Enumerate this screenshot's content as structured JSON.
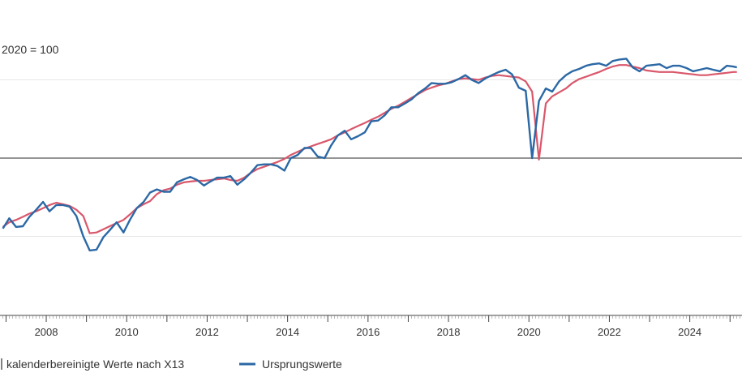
{
  "chart_data": {
    "type": "line",
    "unit_label": "2020 = 100",
    "x_ticks": [
      "2008",
      "2010",
      "2012",
      "2014",
      "2016",
      "2018",
      "2020",
      "2022",
      "2024"
    ],
    "reference_line": 100,
    "grid": "horizontal",
    "legend_placement": "bottom",
    "series": [
      {
        "name": "kalenderbereinigte Werte nach X13",
        "color": "#d9576b",
        "x": [
          2006.92,
          2007.08,
          2007.25,
          2007.42,
          2007.58,
          2007.75,
          2007.92,
          2008.08,
          2008.25,
          2008.42,
          2008.58,
          2008.75,
          2008.92,
          2009.08,
          2009.25,
          2009.42,
          2009.58,
          2009.75,
          2009.92,
          2010.08,
          2010.25,
          2010.42,
          2010.58,
          2010.75,
          2010.92,
          2011.08,
          2011.25,
          2011.42,
          2011.58,
          2011.75,
          2011.92,
          2012.08,
          2012.25,
          2012.42,
          2012.58,
          2012.75,
          2012.92,
          2013.08,
          2013.25,
          2013.42,
          2013.58,
          2013.75,
          2013.92,
          2014.08,
          2014.25,
          2014.42,
          2014.58,
          2014.75,
          2014.92,
          2015.08,
          2015.25,
          2015.42,
          2015.58,
          2015.75,
          2015.92,
          2016.08,
          2016.25,
          2016.42,
          2016.58,
          2016.75,
          2016.92,
          2017.08,
          2017.25,
          2017.42,
          2017.58,
          2017.75,
          2017.92,
          2018.08,
          2018.25,
          2018.42,
          2018.58,
          2018.75,
          2018.92,
          2019.08,
          2019.25,
          2019.42,
          2019.58,
          2019.75,
          2019.92,
          2020.08,
          2020.25,
          2020.42,
          2020.58,
          2020.75,
          2020.92,
          2021.08,
          2021.25,
          2021.42,
          2021.58,
          2021.75,
          2021.92,
          2022.08,
          2022.25,
          2022.42,
          2022.58,
          2022.75,
          2022.92,
          2023.08,
          2023.25,
          2023.42,
          2023.58,
          2023.75,
          2023.92,
          2024.08,
          2024.25,
          2024.42,
          2024.58,
          2024.75,
          2024.92,
          2025.08,
          2025.17
        ],
        "values": [
          91.2,
          91.8,
          92.1,
          92.5,
          92.9,
          93.2,
          93.6,
          94.0,
          94.3,
          94.1,
          93.9,
          93.4,
          92.6,
          90.4,
          90.5,
          90.9,
          91.3,
          91.7,
          92.1,
          92.8,
          93.6,
          94.1,
          94.5,
          95.4,
          95.9,
          96.1,
          96.6,
          96.9,
          97.0,
          97.1,
          97.1,
          97.2,
          97.3,
          97.4,
          97.2,
          97.1,
          97.5,
          98.1,
          98.6,
          98.9,
          99.2,
          99.5,
          99.9,
          100.4,
          100.8,
          101.2,
          101.5,
          101.8,
          102.1,
          102.4,
          102.9,
          103.3,
          103.7,
          104.1,
          104.5,
          104.9,
          105.3,
          105.8,
          106.3,
          106.7,
          107.2,
          107.7,
          108.2,
          108.7,
          109.0,
          109.3,
          109.5,
          109.8,
          110.1,
          110.2,
          110.1,
          110.0,
          110.3,
          110.5,
          110.6,
          110.5,
          110.4,
          110.3,
          109.8,
          108.5,
          99.8,
          107.0,
          107.9,
          108.4,
          108.9,
          109.6,
          110.1,
          110.4,
          110.7,
          111.0,
          111.4,
          111.7,
          111.9,
          111.9,
          111.7,
          111.5,
          111.2,
          111.1,
          111.0,
          111.0,
          111.0,
          110.9,
          110.8,
          110.7,
          110.6,
          110.6,
          110.7,
          110.8,
          110.9,
          111.0,
          111.0
        ]
      },
      {
        "name": "Ursprungswerte",
        "color": "#2b68a5",
        "x": [
          2006.92,
          2007.08,
          2007.25,
          2007.42,
          2007.58,
          2007.75,
          2007.92,
          2008.08,
          2008.25,
          2008.42,
          2008.58,
          2008.75,
          2008.92,
          2009.08,
          2009.25,
          2009.42,
          2009.58,
          2009.75,
          2009.92,
          2010.08,
          2010.25,
          2010.42,
          2010.58,
          2010.75,
          2010.92,
          2011.08,
          2011.25,
          2011.42,
          2011.58,
          2011.75,
          2011.92,
          2012.08,
          2012.25,
          2012.42,
          2012.58,
          2012.75,
          2012.92,
          2013.08,
          2013.25,
          2013.42,
          2013.58,
          2013.75,
          2013.92,
          2014.08,
          2014.25,
          2014.42,
          2014.58,
          2014.75,
          2014.92,
          2015.08,
          2015.25,
          2015.42,
          2015.58,
          2015.75,
          2015.92,
          2016.08,
          2016.25,
          2016.42,
          2016.58,
          2016.75,
          2016.92,
          2017.08,
          2017.25,
          2017.42,
          2017.58,
          2017.75,
          2017.92,
          2018.08,
          2018.25,
          2018.42,
          2018.58,
          2018.75,
          2018.92,
          2019.08,
          2019.25,
          2019.42,
          2019.58,
          2019.75,
          2019.92,
          2020.08,
          2020.25,
          2020.42,
          2020.58,
          2020.75,
          2020.92,
          2021.08,
          2021.25,
          2021.42,
          2021.58,
          2021.75,
          2021.92,
          2022.08,
          2022.25,
          2022.42,
          2022.58,
          2022.75,
          2022.92,
          2023.08,
          2023.25,
          2023.42,
          2023.58,
          2023.75,
          2023.92,
          2024.08,
          2024.25,
          2024.42,
          2024.58,
          2024.75,
          2024.92,
          2025.08,
          2025.17
        ],
        "values": [
          91.0,
          92.3,
          91.2,
          91.3,
          92.5,
          93.4,
          94.4,
          93.2,
          94.0,
          94.0,
          93.8,
          92.6,
          90.0,
          88.2,
          88.3,
          89.9,
          90.8,
          91.8,
          90.5,
          92.1,
          93.6,
          94.4,
          95.6,
          96.0,
          95.7,
          95.7,
          96.9,
          97.3,
          97.6,
          97.2,
          96.5,
          97.0,
          97.5,
          97.5,
          97.7,
          96.6,
          97.3,
          98.1,
          99.1,
          99.2,
          99.2,
          99.0,
          98.4,
          100.0,
          100.4,
          101.3,
          101.3,
          100.2,
          100.0,
          101.6,
          102.9,
          103.5,
          102.4,
          102.8,
          103.3,
          104.7,
          104.8,
          105.5,
          106.5,
          106.5,
          107.0,
          107.5,
          108.3,
          108.9,
          109.6,
          109.5,
          109.5,
          109.7,
          110.1,
          110.6,
          110.0,
          109.6,
          110.2,
          110.6,
          111.0,
          111.3,
          110.7,
          109.0,
          108.6,
          100.0,
          107.3,
          108.9,
          108.5,
          109.8,
          110.6,
          111.1,
          111.4,
          111.8,
          112.0,
          112.1,
          111.8,
          112.4,
          112.6,
          112.7,
          111.6,
          111.1,
          111.8,
          111.9,
          112.0,
          111.5,
          111.8,
          111.8,
          111.5,
          111.1,
          111.3,
          111.5,
          111.3,
          111.1,
          111.8,
          111.7,
          111.6
        ]
      }
    ]
  }
}
